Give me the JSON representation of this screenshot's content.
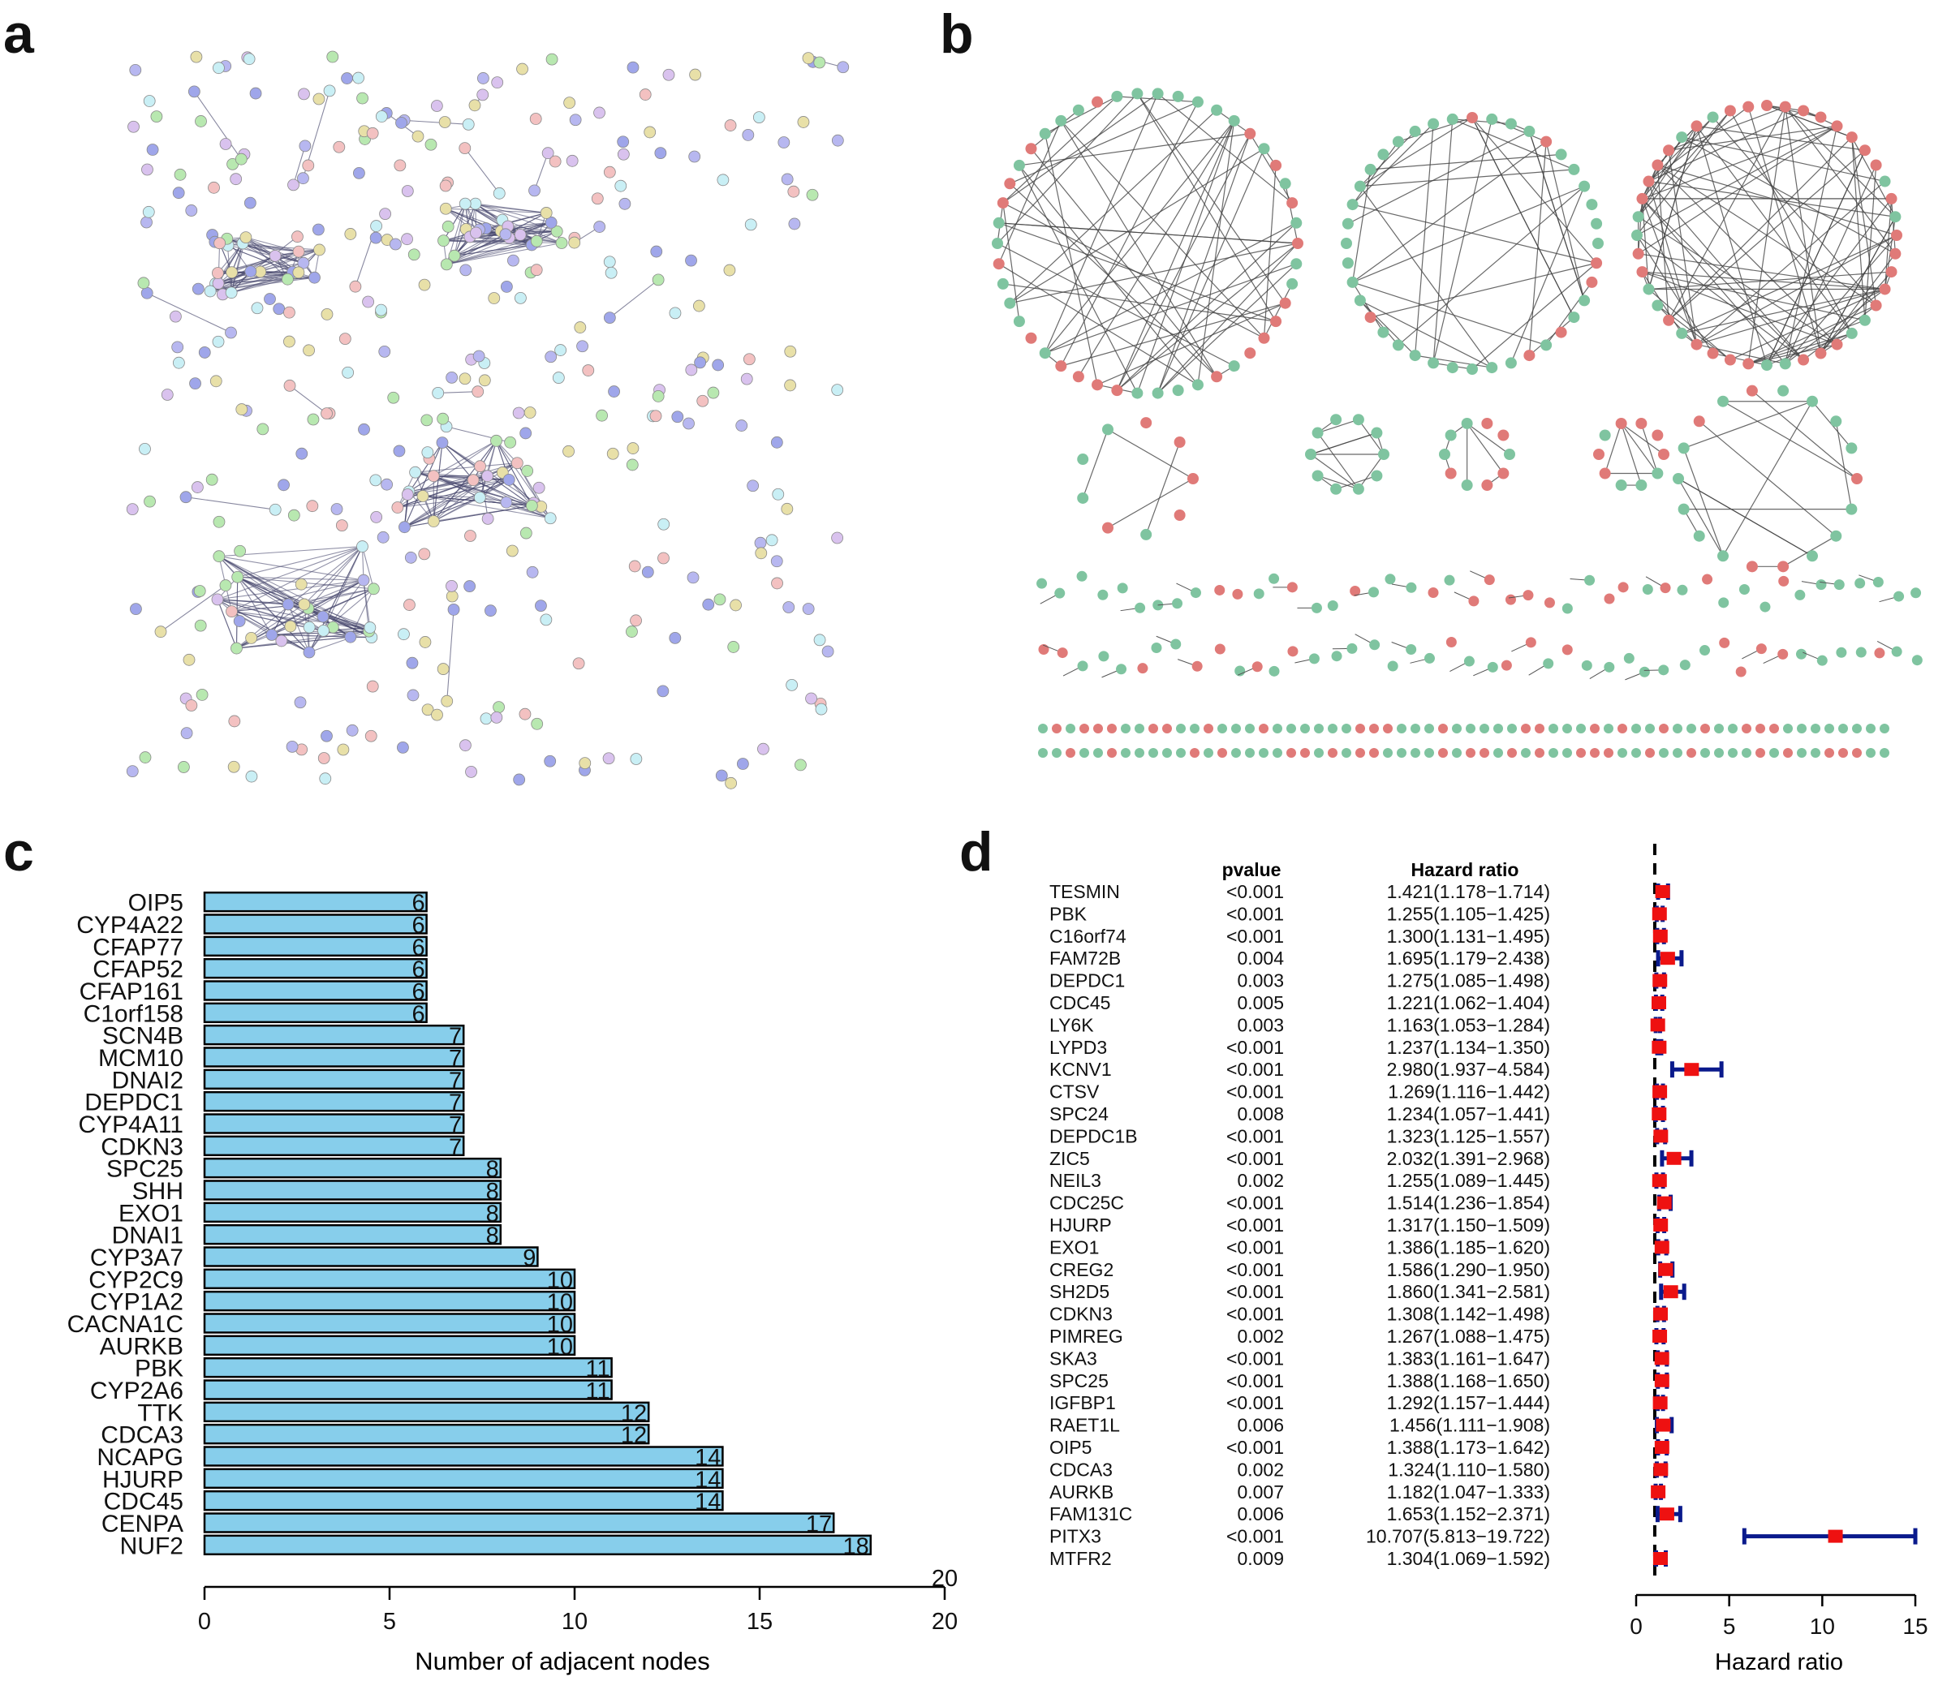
{
  "panels": {
    "a": "a",
    "b": "b",
    "c": "c",
    "d": "d"
  },
  "chart_data": [
    {
      "type": "bar",
      "orientation": "horizontal",
      "panel": "c",
      "xlabel": "Number of adjacent nodes",
      "xlim": [
        0,
        20
      ],
      "xticks": [
        0,
        5,
        10,
        15,
        20
      ],
      "bar_color": "#87ceeb",
      "categories": [
        "OIP5",
        "CYP4A22",
        "CFAP77",
        "CFAP52",
        "CFAP161",
        "C1orf158",
        "SCN4B",
        "MCM10",
        "DNAI2",
        "DEPDC1",
        "CYP4A11",
        "CDKN3",
        "SPC25",
        "SHH",
        "EXO1",
        "DNAI1",
        "CYP3A7",
        "CYP2C9",
        "CYP1A2",
        "CACNA1C",
        "AURKB",
        "PBK",
        "CYP2A6",
        "TTK",
        "CDCA3",
        "NCAPG",
        "HJURP",
        "CDC45",
        "CENPA",
        "NUF2"
      ],
      "values": [
        6,
        6,
        6,
        6,
        6,
        6,
        7,
        7,
        7,
        7,
        7,
        7,
        8,
        8,
        8,
        8,
        9,
        10,
        10,
        10,
        10,
        11,
        11,
        12,
        12,
        14,
        14,
        14,
        17,
        18
      ]
    },
    {
      "type": "forest",
      "panel": "d",
      "header_pvalue": "pvalue",
      "header_hr": "Hazard ratio",
      "xlabel": "Hazard ratio",
      "xlim": [
        0,
        15
      ],
      "xticks": [
        0,
        5,
        10,
        15
      ],
      "reference_line": 1,
      "marker_color": "#ee1111",
      "ci_color": "#0a1a8c",
      "rows": [
        {
          "gene": "TESMIN",
          "pvalue": "<0.001",
          "hr_text": "1.421(1.178−1.714)",
          "hr": 1.421,
          "lo": 1.178,
          "hi": 1.714
        },
        {
          "gene": "PBK",
          "pvalue": "<0.001",
          "hr_text": "1.255(1.105−1.425)",
          "hr": 1.255,
          "lo": 1.105,
          "hi": 1.425
        },
        {
          "gene": "C16orf74",
          "pvalue": "<0.001",
          "hr_text": "1.300(1.131−1.495)",
          "hr": 1.3,
          "lo": 1.131,
          "hi": 1.495
        },
        {
          "gene": "FAM72B",
          "pvalue": "0.004",
          "hr_text": "1.695(1.179−2.438)",
          "hr": 1.695,
          "lo": 1.179,
          "hi": 2.438
        },
        {
          "gene": "DEPDC1",
          "pvalue": "0.003",
          "hr_text": "1.275(1.085−1.498)",
          "hr": 1.275,
          "lo": 1.085,
          "hi": 1.498
        },
        {
          "gene": "CDC45",
          "pvalue": "0.005",
          "hr_text": "1.221(1.062−1.404)",
          "hr": 1.221,
          "lo": 1.062,
          "hi": 1.404
        },
        {
          "gene": "LY6K",
          "pvalue": "0.003",
          "hr_text": "1.163(1.053−1.284)",
          "hr": 1.163,
          "lo": 1.053,
          "hi": 1.284
        },
        {
          "gene": "LYPD3",
          "pvalue": "<0.001",
          "hr_text": "1.237(1.134−1.350)",
          "hr": 1.237,
          "lo": 1.134,
          "hi": 1.35
        },
        {
          "gene": "KCNV1",
          "pvalue": "<0.001",
          "hr_text": "2.980(1.937−4.584)",
          "hr": 2.98,
          "lo": 1.937,
          "hi": 4.584
        },
        {
          "gene": "CTSV",
          "pvalue": "<0.001",
          "hr_text": "1.269(1.116−1.442)",
          "hr": 1.269,
          "lo": 1.116,
          "hi": 1.442
        },
        {
          "gene": "SPC24",
          "pvalue": "0.008",
          "hr_text": "1.234(1.057−1.441)",
          "hr": 1.234,
          "lo": 1.057,
          "hi": 1.441
        },
        {
          "gene": "DEPDC1B",
          "pvalue": "<0.001",
          "hr_text": "1.323(1.125−1.557)",
          "hr": 1.323,
          "lo": 1.125,
          "hi": 1.557
        },
        {
          "gene": "ZIC5",
          "pvalue": "<0.001",
          "hr_text": "2.032(1.391−2.968)",
          "hr": 2.032,
          "lo": 1.391,
          "hi": 2.968
        },
        {
          "gene": "NEIL3",
          "pvalue": "0.002",
          "hr_text": "1.255(1.089−1.445)",
          "hr": 1.255,
          "lo": 1.089,
          "hi": 1.445
        },
        {
          "gene": "CDC25C",
          "pvalue": "<0.001",
          "hr_text": "1.514(1.236−1.854)",
          "hr": 1.514,
          "lo": 1.236,
          "hi": 1.854
        },
        {
          "gene": "HJURP",
          "pvalue": "<0.001",
          "hr_text": "1.317(1.150−1.509)",
          "hr": 1.317,
          "lo": 1.15,
          "hi": 1.509
        },
        {
          "gene": "EXO1",
          "pvalue": "<0.001",
          "hr_text": "1.386(1.185−1.620)",
          "hr": 1.386,
          "lo": 1.185,
          "hi": 1.62
        },
        {
          "gene": "CREG2",
          "pvalue": "<0.001",
          "hr_text": "1.586(1.290−1.950)",
          "hr": 1.586,
          "lo": 1.29,
          "hi": 1.95
        },
        {
          "gene": "SH2D5",
          "pvalue": "<0.001",
          "hr_text": "1.860(1.341−2.581)",
          "hr": 1.86,
          "lo": 1.341,
          "hi": 2.581
        },
        {
          "gene": "CDKN3",
          "pvalue": "<0.001",
          "hr_text": "1.308(1.142−1.498)",
          "hr": 1.308,
          "lo": 1.142,
          "hi": 1.498
        },
        {
          "gene": "PIMREG",
          "pvalue": "0.002",
          "hr_text": "1.267(1.088−1.475)",
          "hr": 1.267,
          "lo": 1.088,
          "hi": 1.475
        },
        {
          "gene": "SKA3",
          "pvalue": "<0.001",
          "hr_text": "1.383(1.161−1.647)",
          "hr": 1.383,
          "lo": 1.161,
          "hi": 1.647
        },
        {
          "gene": "SPC25",
          "pvalue": "<0.001",
          "hr_text": "1.388(1.168−1.650)",
          "hr": 1.388,
          "lo": 1.168,
          "hi": 1.65
        },
        {
          "gene": "IGFBP1",
          "pvalue": "<0.001",
          "hr_text": "1.292(1.157−1.444)",
          "hr": 1.292,
          "lo": 1.157,
          "hi": 1.444
        },
        {
          "gene": "RAET1L",
          "pvalue": "0.006",
          "hr_text": "1.456(1.111−1.908)",
          "hr": 1.456,
          "lo": 1.111,
          "hi": 1.908
        },
        {
          "gene": "OIP5",
          "pvalue": "<0.001",
          "hr_text": "1.388(1.173−1.642)",
          "hr": 1.388,
          "lo": 1.173,
          "hi": 1.642
        },
        {
          "gene": "CDCA3",
          "pvalue": "0.002",
          "hr_text": "1.324(1.110−1.580)",
          "hr": 1.324,
          "lo": 1.11,
          "hi": 1.58
        },
        {
          "gene": "AURKB",
          "pvalue": "0.007",
          "hr_text": "1.182(1.047−1.333)",
          "hr": 1.182,
          "lo": 1.047,
          "hi": 1.333
        },
        {
          "gene": "FAM131C",
          "pvalue": "0.006",
          "hr_text": "1.653(1.152−2.371)",
          "hr": 1.653,
          "lo": 1.152,
          "hi": 2.371
        },
        {
          "gene": "PITX3",
          "pvalue": "<0.001",
          "hr_text": "10.707(5.813−19.722)",
          "hr": 10.707,
          "lo": 5.813,
          "hi": 19.722
        },
        {
          "gene": "MTFR2",
          "pvalue": "0.009",
          "hr_text": "1.304(1.069−1.592)",
          "hr": 1.304,
          "lo": 1.069,
          "hi": 1.592
        }
      ]
    }
  ]
}
